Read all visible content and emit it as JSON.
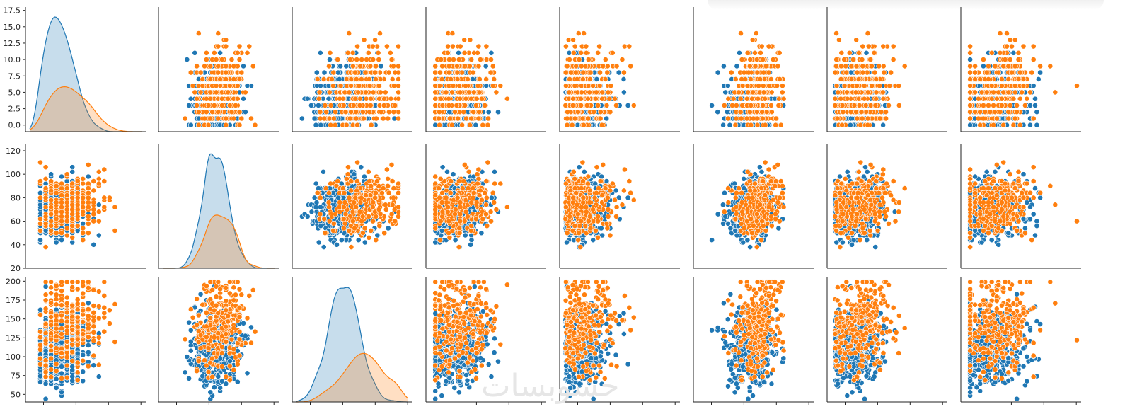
{
  "watermark_text": "حسوبسات",
  "chart_data": {
    "type": "scatter",
    "layout": "pairplot",
    "rows": [
      {
        "var_index": 0,
        "ylim": [
          -1,
          18
        ],
        "yticks": [
          0.0,
          2.5,
          5.0,
          7.5,
          10.0,
          12.5,
          15.0,
          17.5
        ],
        "ytick_labels": [
          "0.0",
          "2.5",
          "5.0",
          "7.5",
          "10.0",
          "12.5",
          "15.0",
          "17.5"
        ]
      },
      {
        "var_index": 1,
        "ylim": [
          20,
          126
        ],
        "yticks": [
          20,
          40,
          60,
          80,
          100,
          120
        ],
        "ytick_labels": [
          "20",
          "40",
          "60",
          "80",
          "100",
          "120"
        ]
      },
      {
        "var_index": 2,
        "ylim": [
          40,
          205
        ],
        "yticks": [
          50,
          75,
          100,
          125,
          150,
          175,
          200
        ],
        "ytick_labels": [
          "50",
          "75",
          "100",
          "125",
          "150",
          "175",
          "200"
        ]
      }
    ],
    "variables": [
      {
        "lim": [
          -2,
          19
        ]
      },
      {
        "lim": [
          15,
          130
        ]
      },
      {
        "lim": [
          35,
          215
        ]
      },
      {
        "lim": [
          -5,
          105
        ]
      },
      {
        "lim": [
          -10,
          700
        ]
      },
      {
        "lim": [
          -5,
          70
        ]
      },
      {
        "lim": [
          0,
          2.5
        ]
      },
      {
        "lim": [
          18,
          85
        ]
      }
    ],
    "series": [
      {
        "color": "#1f77b4",
        "count": 500,
        "means": [
          3.3,
          69.5,
          110,
          20,
          70,
          30.5,
          0.43,
          31
        ],
        "sds": [
          3.0,
          12,
          25,
          14,
          90,
          7.5,
          0.3,
          11
        ],
        "diag_peak": [
          0.13,
          0.04,
          0.018
        ]
      },
      {
        "color": "#ff7f0e",
        "count": 268,
        "means": [
          4.9,
          74,
          141,
          22,
          100,
          35,
          0.55,
          37
        ],
        "sds": [
          3.7,
          13,
          32,
          17,
          130,
          7.5,
          0.37,
          11
        ],
        "diag_peak": [
          0.035,
          0.024,
          0.0085
        ]
      }
    ]
  }
}
